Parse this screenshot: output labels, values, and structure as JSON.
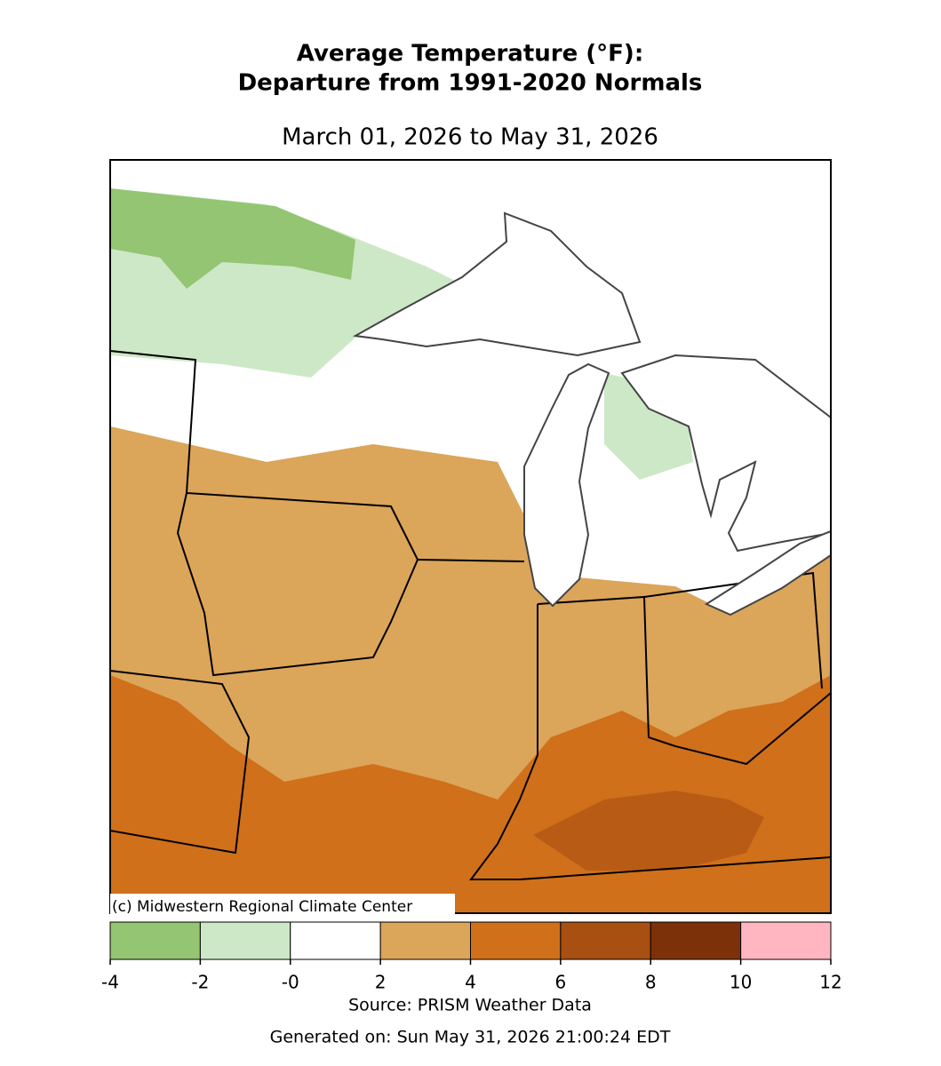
{
  "title": [
    "Average Temperature (°F):",
    "Departure from 1991-2020 Normals"
  ],
  "subtitle": "March 01, 2026 to May 31, 2026",
  "copyright": "(c) Midwestern Regional Climate Center",
  "legend": {
    "ticks": [
      -4,
      -2,
      {
        "value": 0,
        "label": "-0"
      },
      2,
      4,
      6,
      8,
      10,
      12
    ],
    "colors": [
      "#93c572",
      "#cde8c6",
      "#ffffff",
      "#dba55a",
      "#d0701a",
      "#a84f12",
      "#7d3108",
      "#ffb6c1"
    ]
  },
  "source": "Source: PRISM Weather Data",
  "generated": "Generated on: Sun May 31, 2026 21:00:24 EDT"
}
